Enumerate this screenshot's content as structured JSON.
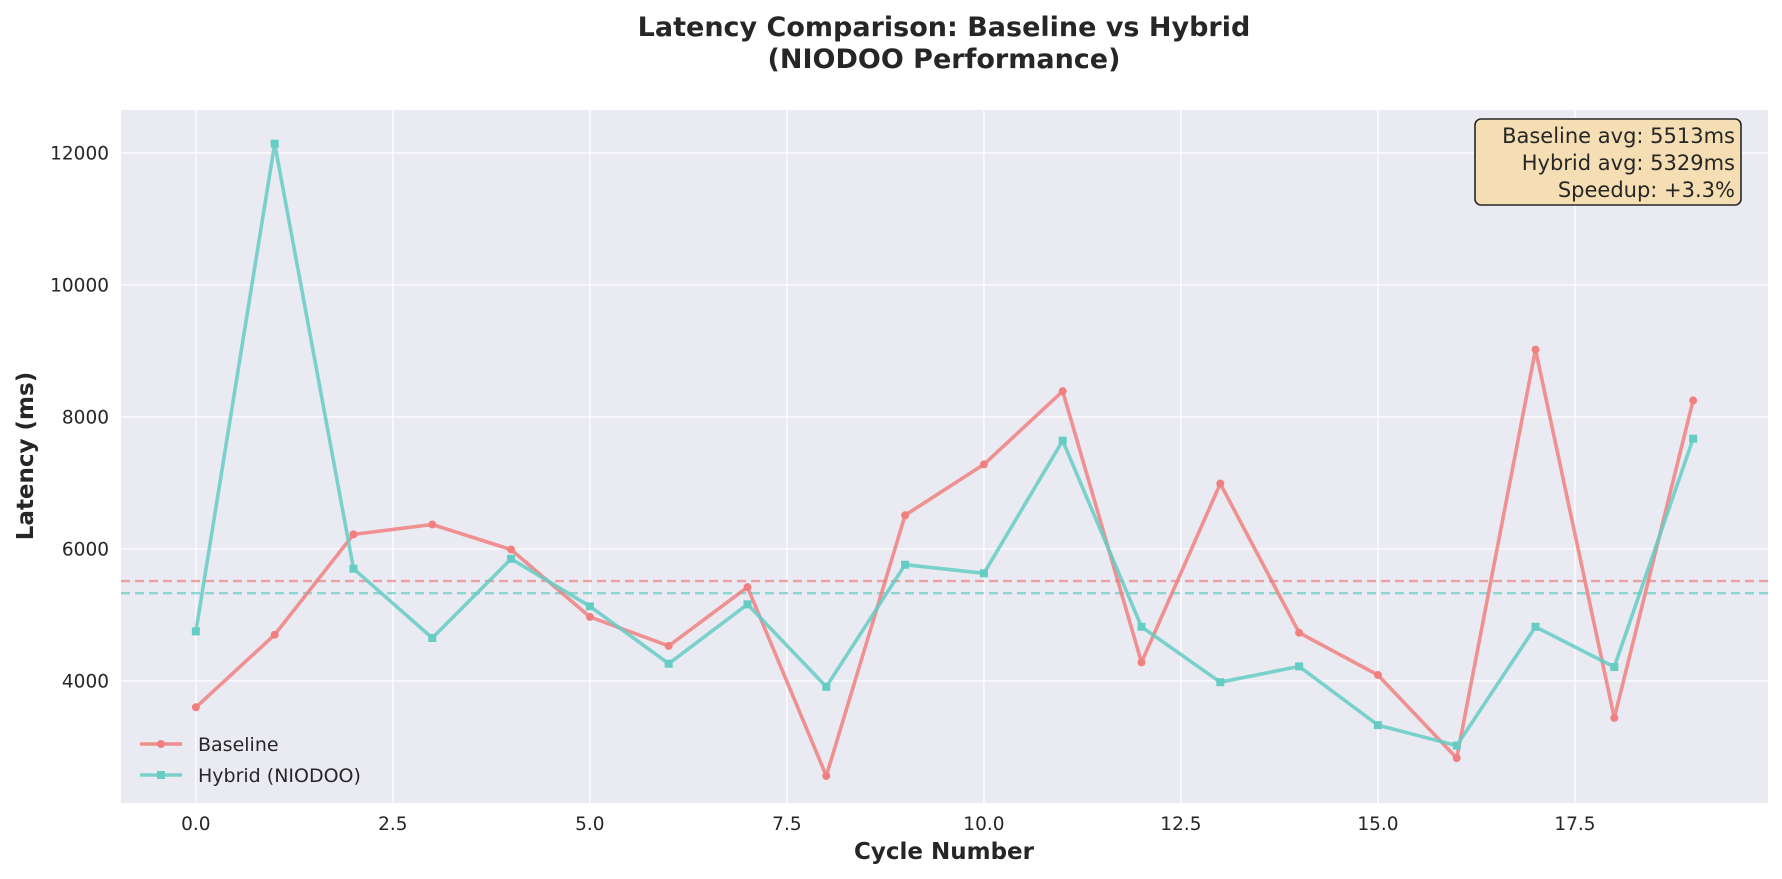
{
  "chart_data": {
    "type": "line",
    "title": [
      "Latency Comparison: Baseline vs Hybrid",
      "(NIODOO Performance)"
    ],
    "xlabel": "Cycle Number",
    "ylabel": "Latency (ms)",
    "xlim": [
      -0.95,
      19.95
    ],
    "ylim": [
      2150,
      12650
    ],
    "xticks": [
      0.0,
      2.5,
      5.0,
      7.5,
      10.0,
      12.5,
      15.0,
      17.5
    ],
    "xtick_labels": [
      "0.0",
      "2.5",
      "5.0",
      "7.5",
      "10.0",
      "12.5",
      "15.0",
      "17.5"
    ],
    "yticks": [
      4000,
      6000,
      8000,
      10000,
      12000
    ],
    "ytick_labels": [
      "4000",
      "6000",
      "8000",
      "10000",
      "12000"
    ],
    "grid": true,
    "legend_position": "lower-left",
    "x": [
      0,
      1,
      2,
      3,
      4,
      5,
      6,
      7,
      8,
      9,
      10,
      11,
      12,
      13,
      14,
      15,
      16,
      17,
      18,
      19
    ],
    "series": [
      {
        "name": "Baseline",
        "color": "#f08080",
        "marker": "circle",
        "values": [
          3600,
          4700,
          6220,
          6370,
          5990,
          4970,
          4530,
          5420,
          2560,
          6510,
          7280,
          8390,
          4280,
          6990,
          4730,
          4090,
          2830,
          9020,
          3440,
          8250
        ]
      },
      {
        "name": "Hybrid (NIODOO)",
        "color": "#66cdc4",
        "marker": "square",
        "values": [
          4750,
          12140,
          5700,
          4650,
          5850,
          5130,
          4260,
          5160,
          3910,
          5760,
          5630,
          7640,
          4820,
          3980,
          4220,
          3330,
          3020,
          4820,
          4210,
          7670
        ]
      }
    ],
    "reference_lines": [
      {
        "series": "Baseline",
        "value": 5513,
        "style": "dashed"
      },
      {
        "series": "Hybrid (NIODOO)",
        "value": 5329,
        "style": "dashed"
      }
    ],
    "annotation": {
      "position": "top-right",
      "lines": [
        "Baseline avg: 5513ms",
        "Hybrid avg: 5329ms",
        "Speedup: +3.3%"
      ]
    }
  }
}
